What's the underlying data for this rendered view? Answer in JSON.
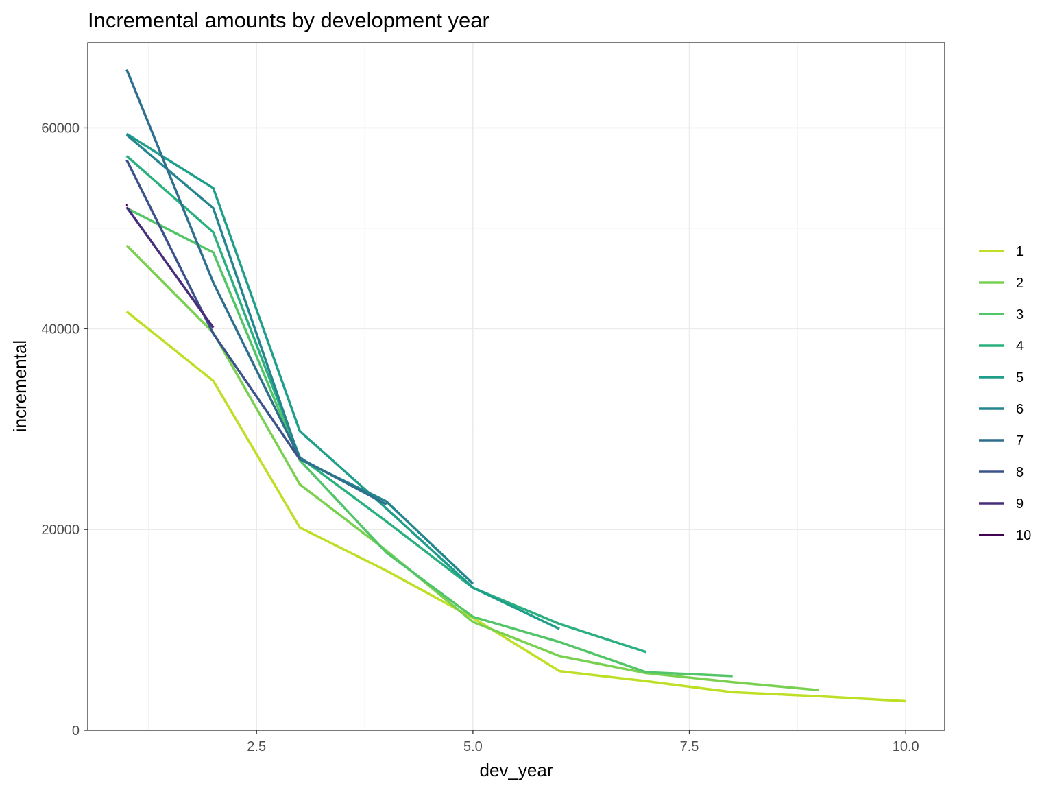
{
  "chart_data": {
    "type": "line",
    "title": "Incremental amounts by development year",
    "xlabel": "dev_year",
    "ylabel": "incremental",
    "xlim": [
      0.55,
      10.45
    ],
    "ylim": [
      0,
      68500
    ],
    "x_ticks": [
      2.5,
      5.0,
      7.5,
      10.0
    ],
    "x_tick_labels": [
      "2.5",
      "5.0",
      "7.5",
      "10.0"
    ],
    "y_ticks": [
      0,
      20000,
      40000,
      60000
    ],
    "y_tick_labels": [
      "0",
      "20000",
      "40000",
      "60000"
    ],
    "grid": true,
    "legend_position": "right",
    "series": [
      {
        "name": "1",
        "color": "#bddf26",
        "x": [
          1,
          2,
          3,
          4,
          5,
          6,
          7,
          8,
          9,
          10
        ],
        "y": [
          41700,
          34800,
          20200,
          15900,
          11200,
          5900,
          4900,
          3800,
          3400,
          2900
        ]
      },
      {
        "name": "2",
        "color": "#7ad151",
        "x": [
          1,
          2,
          3,
          4,
          5,
          6,
          7,
          8,
          9
        ],
        "y": [
          48300,
          39600,
          24500,
          17900,
          10800,
          7400,
          5700,
          4800,
          4000
        ]
      },
      {
        "name": "3",
        "color": "#52c569",
        "x": [
          1,
          2,
          3,
          4,
          5,
          6,
          7,
          8
        ],
        "y": [
          52000,
          47600,
          26900,
          17700,
          11300,
          8800,
          5800,
          5400
        ]
      },
      {
        "name": "4",
        "color": "#2ab07f",
        "x": [
          1,
          2,
          3,
          4,
          5,
          6,
          7
        ],
        "y": [
          57200,
          49600,
          27200,
          20800,
          14200,
          10600,
          7800
        ]
      },
      {
        "name": "5",
        "color": "#1f9e89",
        "x": [
          1,
          2,
          3,
          4,
          5,
          6
        ],
        "y": [
          59400,
          54000,
          29800,
          22100,
          14200,
          10100
        ]
      },
      {
        "name": "6",
        "color": "#25858e",
        "x": [
          1,
          2,
          3,
          4,
          5
        ],
        "y": [
          59300,
          52000,
          27000,
          22800,
          14600
        ]
      },
      {
        "name": "7",
        "color": "#2e6f8e",
        "x": [
          1,
          2,
          3,
          4
        ],
        "y": [
          65800,
          44600,
          27100,
          22500
        ]
      },
      {
        "name": "8",
        "color": "#3b528b",
        "x": [
          1,
          2,
          3
        ],
        "y": [
          56800,
          39500,
          27000
        ]
      },
      {
        "name": "9",
        "color": "#472d7b",
        "x": [
          1,
          2
        ],
        "y": [
          52100,
          40100
        ]
      },
      {
        "name": "10",
        "color": "#440154",
        "x": [
          1
        ],
        "y": [
          52300
        ]
      }
    ]
  }
}
